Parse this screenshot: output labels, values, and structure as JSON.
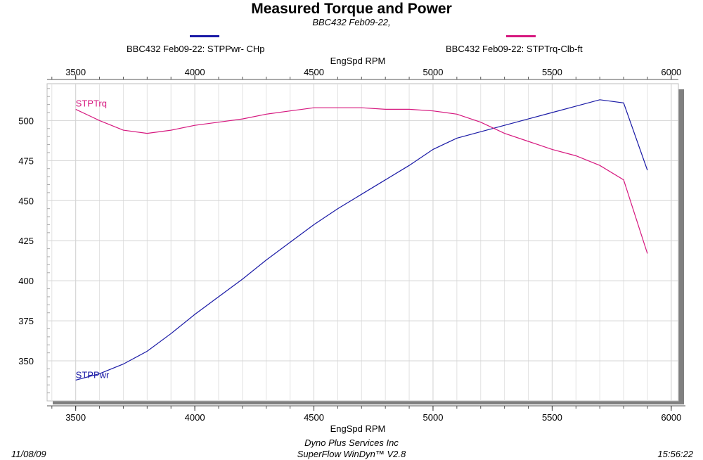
{
  "chart_data": {
    "type": "line",
    "title": "Measured Torque and Power",
    "subtitle": "BBC432 Feb09-22,",
    "xlabel_top": "EngSpd  RPM",
    "xlabel": "EngSpd  RPM",
    "xlim": [
      3380,
      6030
    ],
    "ylim": [
      325,
      523
    ],
    "x_ticks": [
      3500,
      4000,
      4500,
      5000,
      5500,
      6000
    ],
    "x_tick_labels": [
      "3500",
      "4000",
      "4500",
      "5000",
      "5500",
      "6000"
    ],
    "y_ticks": [
      350,
      375,
      400,
      425,
      450,
      475,
      500
    ],
    "y_tick_labels": [
      "350",
      "375",
      "400",
      "425",
      "450",
      "475",
      "500"
    ],
    "x_minor_step": 100,
    "grid": true,
    "series": [
      {
        "name": "BBC432 Feb09-22: STPPwr- CHp",
        "label": "STPPwr",
        "color": "#1a1aa6",
        "x": [
          3500,
          3600,
          3700,
          3800,
          3900,
          4000,
          4100,
          4200,
          4300,
          4400,
          4500,
          4600,
          4700,
          4800,
          4900,
          5000,
          5100,
          5200,
          5300,
          5400,
          5500,
          5600,
          5700,
          5800,
          5900
        ],
        "values": [
          338,
          342,
          348,
          356,
          367,
          379,
          390,
          401,
          413,
          424,
          435,
          445,
          454,
          463,
          472,
          482,
          489,
          493,
          497,
          501,
          505,
          509,
          513,
          511,
          469
        ]
      },
      {
        "name": "BBC432 Feb09-22: STPTrq-Clb-ft",
        "label": "STPTrq",
        "color": "#d6187f",
        "x": [
          3500,
          3600,
          3700,
          3800,
          3900,
          4000,
          4100,
          4200,
          4300,
          4400,
          4500,
          4600,
          4700,
          4800,
          4900,
          5000,
          5100,
          5200,
          5300,
          5400,
          5500,
          5600,
          5700,
          5800,
          5900
        ],
        "values": [
          507,
          500,
          494,
          492,
          494,
          497,
          499,
          501,
          504,
          506,
          508,
          508,
          508,
          507,
          507,
          506,
          504,
          499,
          492,
          487,
          482,
          478,
          472,
          463,
          417
        ]
      }
    ]
  },
  "legend": {
    "power_label": "BBC432 Feb09-22: STPPwr- CHp",
    "power_color": "#1a1aa6",
    "torque_label": "BBC432 Feb09-22: STPTrq-Clb-ft",
    "torque_color": "#d6187f"
  },
  "footer": {
    "date": "11/08/09",
    "company": "Dyno Plus Services Inc",
    "software": "SuperFlow WinDyn™ V2.8",
    "time": "15:56:22"
  }
}
